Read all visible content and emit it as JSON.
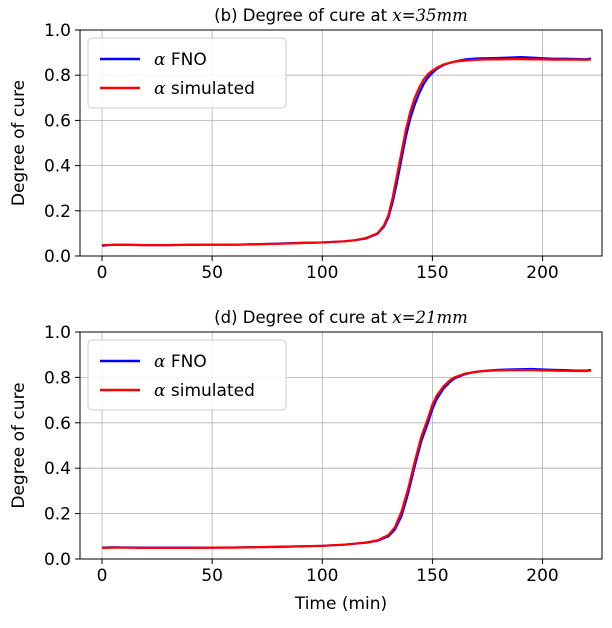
{
  "chart_data": [
    {
      "type": "line",
      "title": {
        "prefix": "(b) Degree of cure at ",
        "math": "x=35mm"
      },
      "xlabel": "",
      "ylabel": "Degree of cure",
      "xlim": [
        -10,
        227
      ],
      "ylim": [
        0,
        1.0
      ],
      "xticks": [
        "0",
        "50",
        "100",
        "150",
        "200"
      ],
      "xtick_values": [
        0,
        50,
        100,
        150,
        200
      ],
      "yticks": [
        "0.0",
        "0.2",
        "0.4",
        "0.6",
        "0.8",
        "1.0"
      ],
      "ytick_values": [
        0,
        0.2,
        0.4,
        0.6,
        0.8,
        1.0
      ],
      "grid": true,
      "legend_position": "top-left",
      "series": [
        {
          "name": "FNO",
          "math_prefix": "α",
          "color": "#0000ff",
          "x": [
            0,
            5,
            10,
            20,
            30,
            40,
            50,
            60,
            70,
            80,
            90,
            100,
            110,
            115,
            120,
            125,
            128,
            130,
            132,
            134,
            136,
            138,
            140,
            142,
            144,
            146,
            148,
            150,
            152,
            155,
            158,
            160,
            165,
            170,
            175,
            180,
            185,
            190,
            195,
            200,
            205,
            210,
            215,
            220,
            222
          ],
          "y": [
            0.045,
            0.05,
            0.05,
            0.048,
            0.048,
            0.05,
            0.05,
            0.05,
            0.052,
            0.055,
            0.058,
            0.06,
            0.065,
            0.07,
            0.078,
            0.098,
            0.13,
            0.17,
            0.24,
            0.33,
            0.43,
            0.53,
            0.61,
            0.67,
            0.72,
            0.76,
            0.79,
            0.81,
            0.828,
            0.845,
            0.855,
            0.86,
            0.87,
            0.874,
            0.875,
            0.876,
            0.878,
            0.88,
            0.878,
            0.875,
            0.873,
            0.873,
            0.872,
            0.87,
            0.874
          ]
        },
        {
          "name": "simulated",
          "math_prefix": "α",
          "color": "#ff0000",
          "x": [
            0,
            5,
            10,
            20,
            30,
            40,
            50,
            60,
            70,
            80,
            90,
            100,
            110,
            115,
            120,
            125,
            128,
            130,
            132,
            134,
            136,
            138,
            140,
            142,
            144,
            146,
            148,
            150,
            152,
            155,
            158,
            160,
            165,
            170,
            175,
            180,
            185,
            190,
            195,
            200,
            205,
            210,
            215,
            220,
            222
          ],
          "y": [
            0.048,
            0.049,
            0.049,
            0.048,
            0.048,
            0.049,
            0.05,
            0.05,
            0.052,
            0.054,
            0.057,
            0.06,
            0.065,
            0.07,
            0.08,
            0.1,
            0.135,
            0.18,
            0.26,
            0.36,
            0.46,
            0.56,
            0.64,
            0.7,
            0.745,
            0.78,
            0.805,
            0.82,
            0.833,
            0.847,
            0.855,
            0.86,
            0.865,
            0.868,
            0.87,
            0.87,
            0.871,
            0.871,
            0.87,
            0.87,
            0.869,
            0.869,
            0.869,
            0.868,
            0.87
          ]
        }
      ]
    },
    {
      "type": "line",
      "title": {
        "prefix": "(d) Degree of cure at ",
        "math": "x=21mm"
      },
      "xlabel": "Time (min)",
      "ylabel": "Degree of cure",
      "xlim": [
        -10,
        227
      ],
      "ylim": [
        0,
        1.0
      ],
      "xticks": [
        "0",
        "50",
        "100",
        "150",
        "200"
      ],
      "xtick_values": [
        0,
        50,
        100,
        150,
        200
      ],
      "yticks": [
        "0.0",
        "0.2",
        "0.4",
        "0.6",
        "0.8",
        "1.0"
      ],
      "ytick_values": [
        0,
        0.2,
        0.4,
        0.6,
        0.8,
        1.0
      ],
      "grid": true,
      "legend_position": "top-left",
      "series": [
        {
          "name": "FNO",
          "math_prefix": "α",
          "color": "#0000ff",
          "x": [
            0,
            5,
            10,
            20,
            30,
            40,
            50,
            60,
            70,
            80,
            90,
            100,
            110,
            120,
            125,
            130,
            133,
            136,
            139,
            142,
            145,
            148,
            150,
            152,
            155,
            158,
            160,
            165,
            170,
            175,
            180,
            185,
            190,
            195,
            200,
            205,
            210,
            215,
            220,
            222
          ],
          "y": [
            0.05,
            0.052,
            0.051,
            0.05,
            0.05,
            0.05,
            0.05,
            0.051,
            0.052,
            0.054,
            0.056,
            0.058,
            0.063,
            0.072,
            0.08,
            0.1,
            0.13,
            0.19,
            0.29,
            0.41,
            0.52,
            0.6,
            0.66,
            0.705,
            0.75,
            0.78,
            0.795,
            0.815,
            0.825,
            0.83,
            0.833,
            0.835,
            0.836,
            0.837,
            0.835,
            0.833,
            0.832,
            0.83,
            0.83,
            0.833
          ]
        },
        {
          "name": "simulated",
          "math_prefix": "α",
          "color": "#ff0000",
          "x": [
            0,
            5,
            10,
            20,
            30,
            40,
            50,
            60,
            70,
            80,
            90,
            100,
            110,
            120,
            125,
            130,
            133,
            136,
            139,
            142,
            145,
            148,
            150,
            152,
            155,
            158,
            160,
            165,
            170,
            175,
            180,
            185,
            190,
            195,
            200,
            205,
            210,
            215,
            220,
            222
          ],
          "y": [
            0.049,
            0.05,
            0.05,
            0.049,
            0.049,
            0.049,
            0.05,
            0.05,
            0.052,
            0.053,
            0.056,
            0.058,
            0.063,
            0.073,
            0.082,
            0.105,
            0.14,
            0.21,
            0.31,
            0.43,
            0.54,
            0.62,
            0.68,
            0.72,
            0.76,
            0.788,
            0.8,
            0.817,
            0.825,
            0.829,
            0.831,
            0.832,
            0.832,
            0.832,
            0.831,
            0.83,
            0.829,
            0.828,
            0.828,
            0.83
          ]
        }
      ]
    }
  ]
}
